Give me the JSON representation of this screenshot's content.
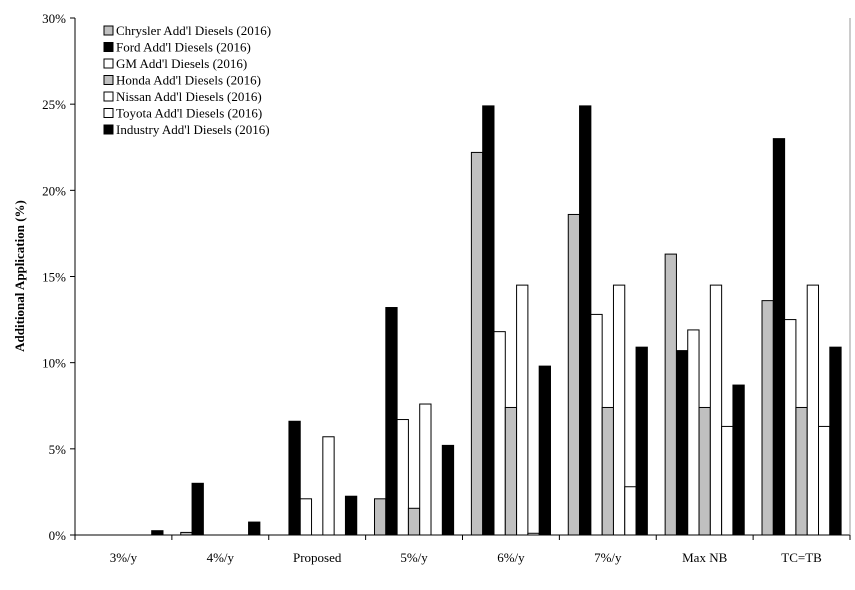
{
  "chart_data": {
    "type": "bar",
    "title": "",
    "xlabel": "",
    "ylabel": "Additional Application (%)",
    "ylim": [
      0,
      30
    ],
    "yticks": [
      "0%",
      "5%",
      "10%",
      "15%",
      "20%",
      "25%",
      "30%"
    ],
    "ytick_values": [
      0,
      5,
      10,
      15,
      20,
      25,
      30
    ],
    "legend_position": "top-left",
    "grid": false,
    "categories": [
      "3%/y",
      "4%/y",
      "Proposed",
      "5%/y",
      "6%/y",
      "7%/y",
      "Max NB",
      "TC=TB"
    ],
    "series": [
      {
        "name": "Chrysler Add'l Diesels  (2016)",
        "color": "#c0c0c0",
        "values": [
          0,
          0.15,
          0,
          2.1,
          22.2,
          18.6,
          16.3,
          13.6
        ]
      },
      {
        "name": "Ford Add'l Diesels  (2016)",
        "color": "#000000",
        "values": [
          0,
          3.0,
          6.6,
          13.2,
          24.9,
          24.9,
          10.7,
          23.0
        ]
      },
      {
        "name": "GM Add'l Diesels  (2016)",
        "color": "#ffffff",
        "values": [
          0,
          0,
          2.1,
          6.7,
          11.8,
          12.8,
          11.9,
          12.5
        ]
      },
      {
        "name": "Honda Add'l Diesels  (2016)",
        "color": "#c0c0c0",
        "values": [
          0,
          0,
          0,
          1.55,
          7.4,
          7.4,
          7.4,
          7.4
        ]
      },
      {
        "name": "Nissan Add'l Diesels  (2016)",
        "color": "#ffffff",
        "values": [
          0,
          0,
          5.7,
          7.6,
          14.5,
          14.5,
          14.5,
          14.5
        ]
      },
      {
        "name": "Toyota Add'l Diesels  (2016)",
        "color": "#ffffff",
        "values": [
          0,
          0,
          0,
          0,
          0.1,
          2.8,
          6.3,
          6.3
        ]
      },
      {
        "name": "Industry Add'l Diesels  (2016)",
        "color": "#000000",
        "values": [
          0.25,
          0.75,
          2.25,
          5.2,
          9.8,
          10.9,
          8.7,
          10.9
        ]
      }
    ]
  }
}
